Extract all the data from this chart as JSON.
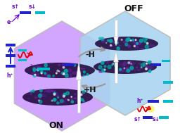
{
  "fig_width": 2.56,
  "fig_height": 1.89,
  "dpi": 100,
  "bg_color": "#ffffff",
  "left_hex_color": "#cc99ff",
  "right_hex_color": "#a8d4f0",
  "left_hex_edge": "#bbbbbb",
  "right_hex_edge": "#bbbbbb",
  "left_label": "ON",
  "right_label": "OFF",
  "minus_h": "-H",
  "plus_h": "+H",
  "spin_up": "s↑",
  "spin_down": "s↓",
  "electron": "e⁻",
  "hole": "h⁺",
  "bar_blue": "#2222cc",
  "bar_cyan": "#00bbcc",
  "text_purple": "#6600cc",
  "mol_dark": "#1a0033",
  "mol_purple": "#6622aa",
  "mol_cyan": "#00aaaa"
}
